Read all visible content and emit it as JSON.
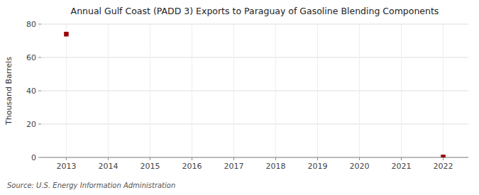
{
  "chart_data": {
    "type": "scatter",
    "title": "Annual Gulf Coast (PADD 3) Exports to Paraguay of Gasoline Blending Components",
    "ylabel": "Thousand Barrels",
    "source": "Source: U.S. Energy Information Administration",
    "x": [
      2013,
      2022
    ],
    "values": [
      74,
      0.3
    ],
    "color": "#990000",
    "marker": "square",
    "xlim": [
      2012.4,
      2022.6
    ],
    "ylim": [
      0,
      80
    ],
    "xticks": [
      2013,
      2014,
      2015,
      2016,
      2017,
      2018,
      2019,
      2020,
      2021,
      2022
    ],
    "yticks": [
      0,
      20,
      40,
      60,
      80
    ],
    "grid": true
  }
}
